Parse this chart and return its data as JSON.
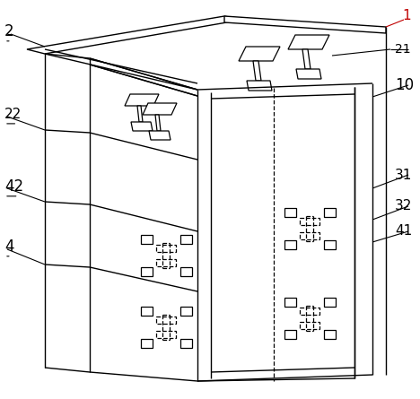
{
  "bg_color": "#ffffff",
  "line_color": "#000000",
  "red_color": "#c00000",
  "figsize": [
    4.68,
    4.45
  ],
  "dpi": 100
}
